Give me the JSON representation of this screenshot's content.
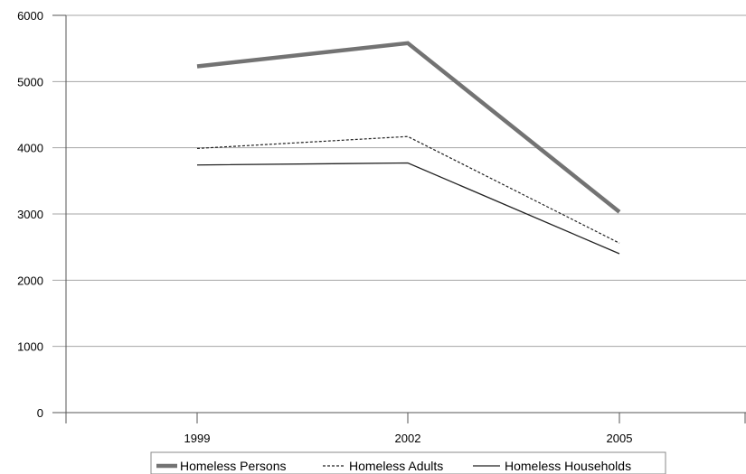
{
  "chart_data": {
    "type": "line",
    "title": "",
    "xlabel": "",
    "ylabel": "",
    "categories": [
      "1999",
      "2002",
      "2005"
    ],
    "ylim": [
      0,
      6000
    ],
    "yticks": [
      "0",
      "1000",
      "2000",
      "3000",
      "4000",
      "5000",
      "6000"
    ],
    "grid": true,
    "legend_position": "bottom",
    "series": [
      {
        "name": "Homeless Persons",
        "values": [
          5230,
          5580,
          3030
        ],
        "color": "#737373",
        "style": "thick-solid"
      },
      {
        "name": "Homeless Adults",
        "values": [
          3990,
          4170,
          2560
        ],
        "color": "#222222",
        "style": "dashed"
      },
      {
        "name": "Homeless Households",
        "values": [
          3740,
          3770,
          2400
        ],
        "color": "#222222",
        "style": "thin-solid"
      }
    ]
  }
}
